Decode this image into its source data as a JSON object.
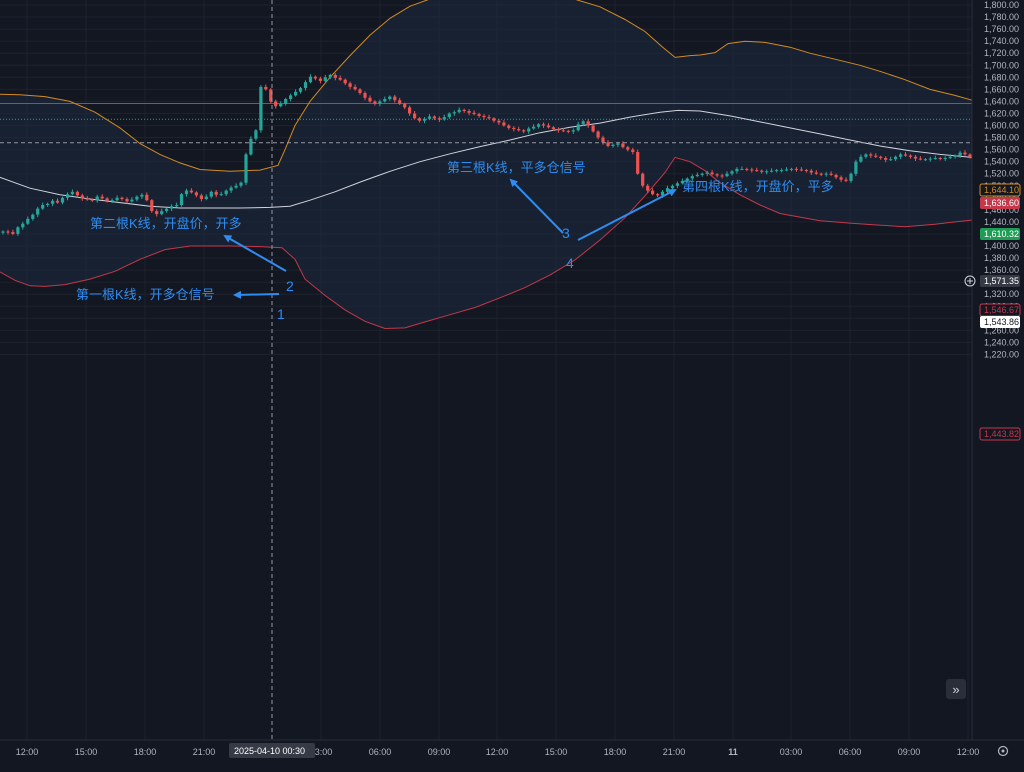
{
  "chart_data": {
    "type": "candlestick",
    "y_axis": {
      "ticks": [
        "1,800.00",
        "1,780.00",
        "1,760.00",
        "1,740.00",
        "1,720.00",
        "1,700.00",
        "1,680.00",
        "1,660.00",
        "1,640.00",
        "1,620.00",
        "1,600.00",
        "1,580.00",
        "1,560.00",
        "1,540.00",
        "1,520.00",
        "1,500.00",
        "1,480.00",
        "1,460.00",
        "1,440.00",
        "1,420.00",
        "1,400.00",
        "1,380.00",
        "1,360.00",
        "1,340.00",
        "1,320.00",
        "1,300.00",
        "1,280.00",
        "1,260.00",
        "1,240.00",
        "1,220.00"
      ],
      "range": [
        1204,
        1804
      ]
    },
    "x_axis": {
      "ticks": [
        "12:00",
        "15:00",
        "18:00",
        "21:00",
        "03:00",
        "06:00",
        "09:00",
        "12:00",
        "15:00",
        "18:00",
        "21:00",
        "11",
        "03:00",
        "06:00",
        "09:00",
        "12:00"
      ],
      "crosshair_label": "2025-04-10  00:30"
    },
    "price_tags": {
      "upper_band": "1,644.10",
      "horizontal_line": "1,636.60",
      "green_line": "1,610.32",
      "crosshair": "1,571.35",
      "middle_band": "1,546.67",
      "last_price": "1,543.86",
      "lower_band": "1,443.82"
    },
    "annotations": [
      {
        "text": "第二根K线，开盘价，开多"
      },
      {
        "text": "第一根K线，开多仓信号"
      },
      {
        "text": "第三根K线，平多仓信号"
      },
      {
        "text": "第四根K线，开盘价，平多"
      }
    ],
    "markers": [
      "1",
      "2",
      "3",
      "4"
    ],
    "colors": {
      "background": "#131722",
      "up": "#26a69a",
      "down": "#ef5350",
      "upper_band": "#d38a23",
      "lower_band": "#c4384a",
      "middle_band": "#d1d4dc",
      "annotation": "#2f8cf0"
    },
    "candles_approx": {
      "time_range": "2025-04-09 ~10:00 to 2025-04-11 ~13:00, 30-minute bars",
      "close_path": [
        1424,
        1423,
        1420,
        1431,
        1437,
        1445,
        1452,
        1462,
        1468,
        1470,
        1475,
        1472,
        1480,
        1486,
        1490,
        1484,
        1479,
        1477,
        1476,
        1482,
        1479,
        1475,
        1476,
        1480,
        1478,
        1474,
        1477,
        1482,
        1485,
        1476,
        1458,
        1453,
        1458,
        1462,
        1466,
        1468,
        1486,
        1492,
        1489,
        1484,
        1478,
        1482,
        1490,
        1485,
        1486,
        1492,
        1497,
        1500,
        1505,
        1552,
        1578,
        1592,
        1664,
        1660,
        1640,
        1632,
        1636,
        1644,
        1650,
        1656,
        1662,
        1672,
        1681,
        1678,
        1674,
        1680,
        1684,
        1679,
        1676,
        1670,
        1664,
        1660,
        1654,
        1646,
        1640,
        1636,
        1640,
        1644,
        1648,
        1642,
        1636,
        1630,
        1620,
        1612,
        1608,
        1611,
        1615,
        1612,
        1610,
        1614,
        1620,
        1622,
        1626,
        1624,
        1621,
        1619,
        1616,
        1614,
        1612,
        1608,
        1605,
        1600,
        1596,
        1594,
        1592,
        1590,
        1595,
        1598,
        1602,
        1600,
        1597,
        1594,
        1592,
        1591,
        1590,
        1592,
        1602,
        1607,
        1600,
        1590,
        1580,
        1572,
        1566,
        1568,
        1570,
        1564,
        1560,
        1556,
        1520,
        1500,
        1492,
        1486,
        1484,
        1490,
        1496,
        1500,
        1504,
        1508,
        1512,
        1516,
        1518,
        1520,
        1522,
        1519,
        1517,
        1516,
        1520,
        1524,
        1528,
        1528,
        1527,
        1526,
        1525,
        1523,
        1524,
        1525,
        1526,
        1526,
        1527,
        1528,
        1527,
        1526,
        1525,
        1522,
        1520,
        1519,
        1520,
        1518,
        1514,
        1510,
        1508,
        1520,
        1540,
        1548,
        1552,
        1550,
        1548,
        1546,
        1543,
        1544,
        1548,
        1552,
        1550,
        1548,
        1545,
        1544,
        1544,
        1545,
        1546,
        1545,
        1546,
        1548,
        1550,
        1555,
        1552,
        1548
      ]
    }
  }
}
